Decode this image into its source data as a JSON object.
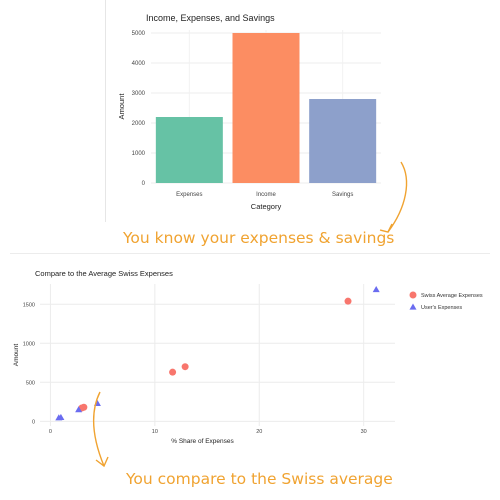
{
  "chart_data": [
    {
      "type": "bar",
      "title": "Income, Expenses, and Savings",
      "xlabel": "Category",
      "ylabel": "Amount",
      "categories": [
        "Expenses",
        "Income",
        "Savings"
      ],
      "values": [
        2200,
        5000,
        2800
      ],
      "colors": [
        "#66c2a5",
        "#fc8d62",
        "#8da0cb"
      ],
      "ylim": [
        0,
        5100
      ],
      "yticks": [
        0,
        1000,
        2000,
        3000,
        4000,
        5000
      ],
      "grid": true
    },
    {
      "type": "scatter",
      "title": "Compare to the Average Swiss Expenses",
      "xlabel": "% Share of Expenses",
      "ylabel": "Amount",
      "xlim": [
        -1,
        33
      ],
      "ylim": [
        -60,
        1760
      ],
      "xticks": [
        0,
        10,
        20,
        30
      ],
      "yticks": [
        0,
        500,
        1000,
        1500
      ],
      "grid": true,
      "legend_position": "top-right",
      "series": [
        {
          "name": "Swiss Average Expenses",
          "marker": "circle",
          "color": "#f8766d",
          "points": [
            [
              3.0,
              170
            ],
            [
              3.2,
              180
            ],
            [
              11.7,
              630
            ],
            [
              12.9,
              700
            ],
            [
              28.5,
              1540
            ]
          ]
        },
        {
          "name": "User's Expenses",
          "marker": "triangle",
          "color": "#6a6cf0",
          "points": [
            [
              0.8,
              45
            ],
            [
              1.0,
              50
            ],
            [
              2.7,
              150
            ],
            [
              4.5,
              230
            ],
            [
              31.2,
              1690
            ]
          ]
        }
      ]
    }
  ],
  "captions": {
    "top": "You know your expenses & savings",
    "bottom": "You compare to the Swiss average"
  },
  "colors": {
    "accent": "#f0a331"
  }
}
